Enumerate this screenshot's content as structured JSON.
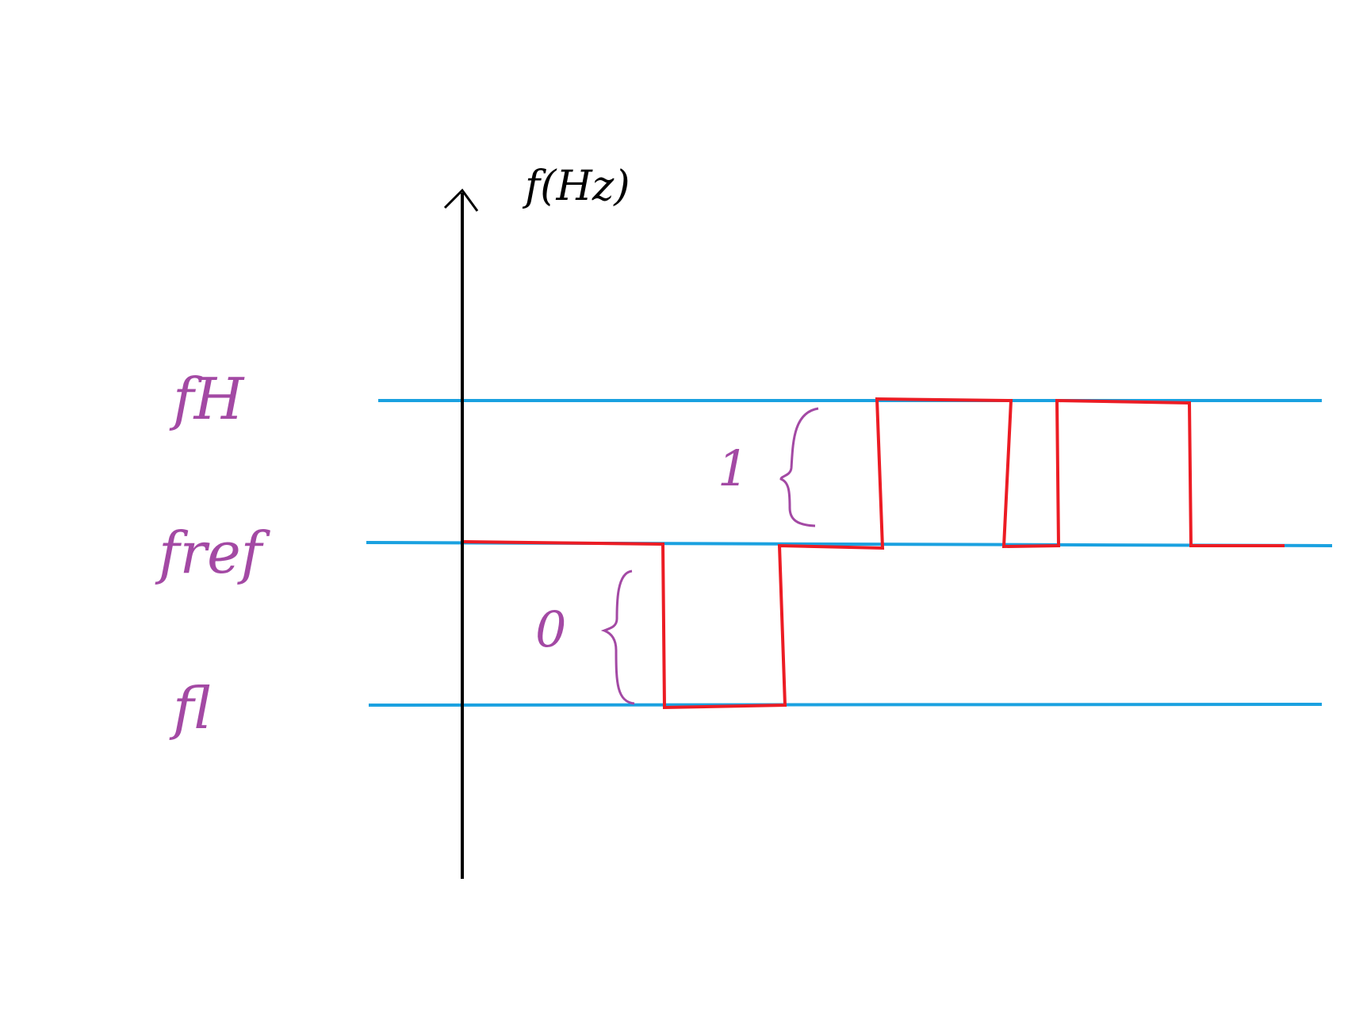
{
  "axis": {
    "label": "f(Hz)"
  },
  "levels": [
    {
      "id": "fh",
      "label": "fH"
    },
    {
      "id": "fref",
      "label": "fref"
    },
    {
      "id": "fl",
      "label": "fl"
    }
  ],
  "bit_labels": [
    {
      "id": "bit-one",
      "text": "1"
    },
    {
      "id": "bit-zero",
      "text": "0"
    }
  ],
  "colors": {
    "axis": "#000000",
    "level_line": "#1aa1e0",
    "signal": "#ec1c24",
    "annotation": "#a349a4",
    "background": "#ffffff"
  }
}
